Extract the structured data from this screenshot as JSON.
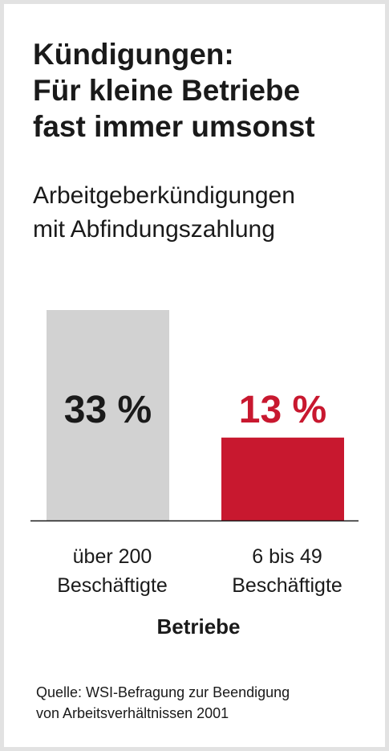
{
  "chart_data": {
    "type": "bar",
    "title": [
      "Kündigungen:",
      "Für kleine Betriebe",
      "fast immer umsonst"
    ],
    "subtitle": [
      "Arbeitgeberkündigungen",
      "mit Abfindungszahlung"
    ],
    "categories": [
      [
        "über 200",
        "Beschäftigte"
      ],
      [
        "6 bis 49",
        "Beschäftigte"
      ]
    ],
    "values": [
      33,
      13
    ],
    "value_labels": [
      "33 %",
      "13 %"
    ],
    "colors": [
      "#d2d2d2",
      "#c8182f"
    ],
    "label_colors": [
      "#1a1a1a",
      "#c8182f"
    ],
    "xlabel": "Betriebe",
    "ylabel": "",
    "ylim": [
      0,
      33
    ],
    "grid": false,
    "source": [
      "Quelle: WSI-Befragung zur Beendigung",
      "von Arbeitsverhältnissen 2001"
    ]
  }
}
